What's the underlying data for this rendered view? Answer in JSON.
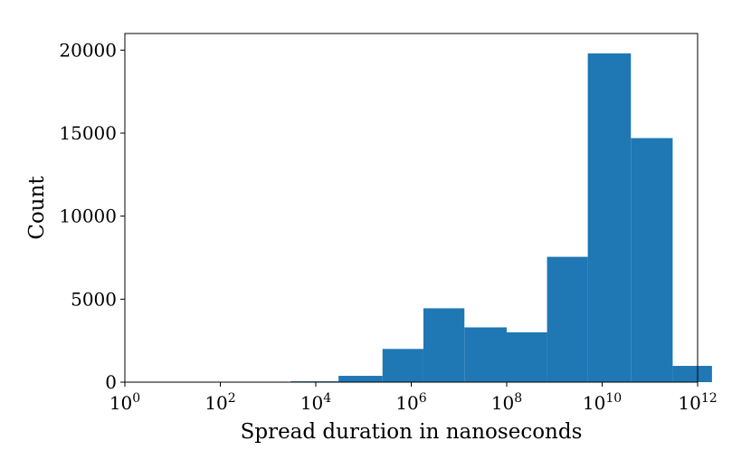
{
  "chart_data": {
    "type": "histogram",
    "title": "",
    "xlabel": "Spread duration in nanoseconds",
    "ylabel": "Count",
    "x_scale": "log10",
    "xlim": [
      1,
      1000000000000
    ],
    "ylim": [
      0,
      21000
    ],
    "x_ticks": [
      {
        "value": 1,
        "base": "10",
        "exp": "0"
      },
      {
        "value": 100,
        "base": "10",
        "exp": "2"
      },
      {
        "value": 10000,
        "base": "10",
        "exp": "4"
      },
      {
        "value": 1000000,
        "base": "10",
        "exp": "6"
      },
      {
        "value": 100000000,
        "base": "10",
        "exp": "8"
      },
      {
        "value": 10000000000,
        "base": "10",
        "exp": "10"
      },
      {
        "value": 1000000000000,
        "base": "10",
        "exp": "12"
      }
    ],
    "y_ticks": [
      {
        "value": 0,
        "label": "0"
      },
      {
        "value": 5000,
        "label": "5000"
      },
      {
        "value": 10000,
        "label": "10000"
      },
      {
        "value": 15000,
        "label": "15000"
      },
      {
        "value": 20000,
        "label": "20000"
      }
    ],
    "bins": [
      {
        "x0": 1,
        "x1": 10,
        "count": 0
      },
      {
        "x0": 10,
        "x1": 100,
        "count": 0
      },
      {
        "x0": 100,
        "x1": 3000,
        "count": 0
      },
      {
        "x0": 3000,
        "x1": 30000,
        "count": 50
      },
      {
        "x0": 30000,
        "x1": 250000,
        "count": 380
      },
      {
        "x0": 250000,
        "x1": 1800000,
        "count": 2000
      },
      {
        "x0": 1800000,
        "x1": 13000000,
        "count": 4450
      },
      {
        "x0": 13000000,
        "x1": 100000000,
        "count": 3300
      },
      {
        "x0": 100000000,
        "x1": 700000000,
        "count": 3000
      },
      {
        "x0": 700000000,
        "x1": 5000000000,
        "count": 7550
      },
      {
        "x0": 5000000000,
        "x1": 40000000000,
        "count": 19800
      },
      {
        "x0": 40000000000,
        "x1": 300000000000,
        "count": 14700
      },
      {
        "x0": 300000000000,
        "x1": 2000000000000,
        "count": 980
      }
    ],
    "grid": false,
    "colors": {
      "bar": "#1f77b4"
    }
  }
}
